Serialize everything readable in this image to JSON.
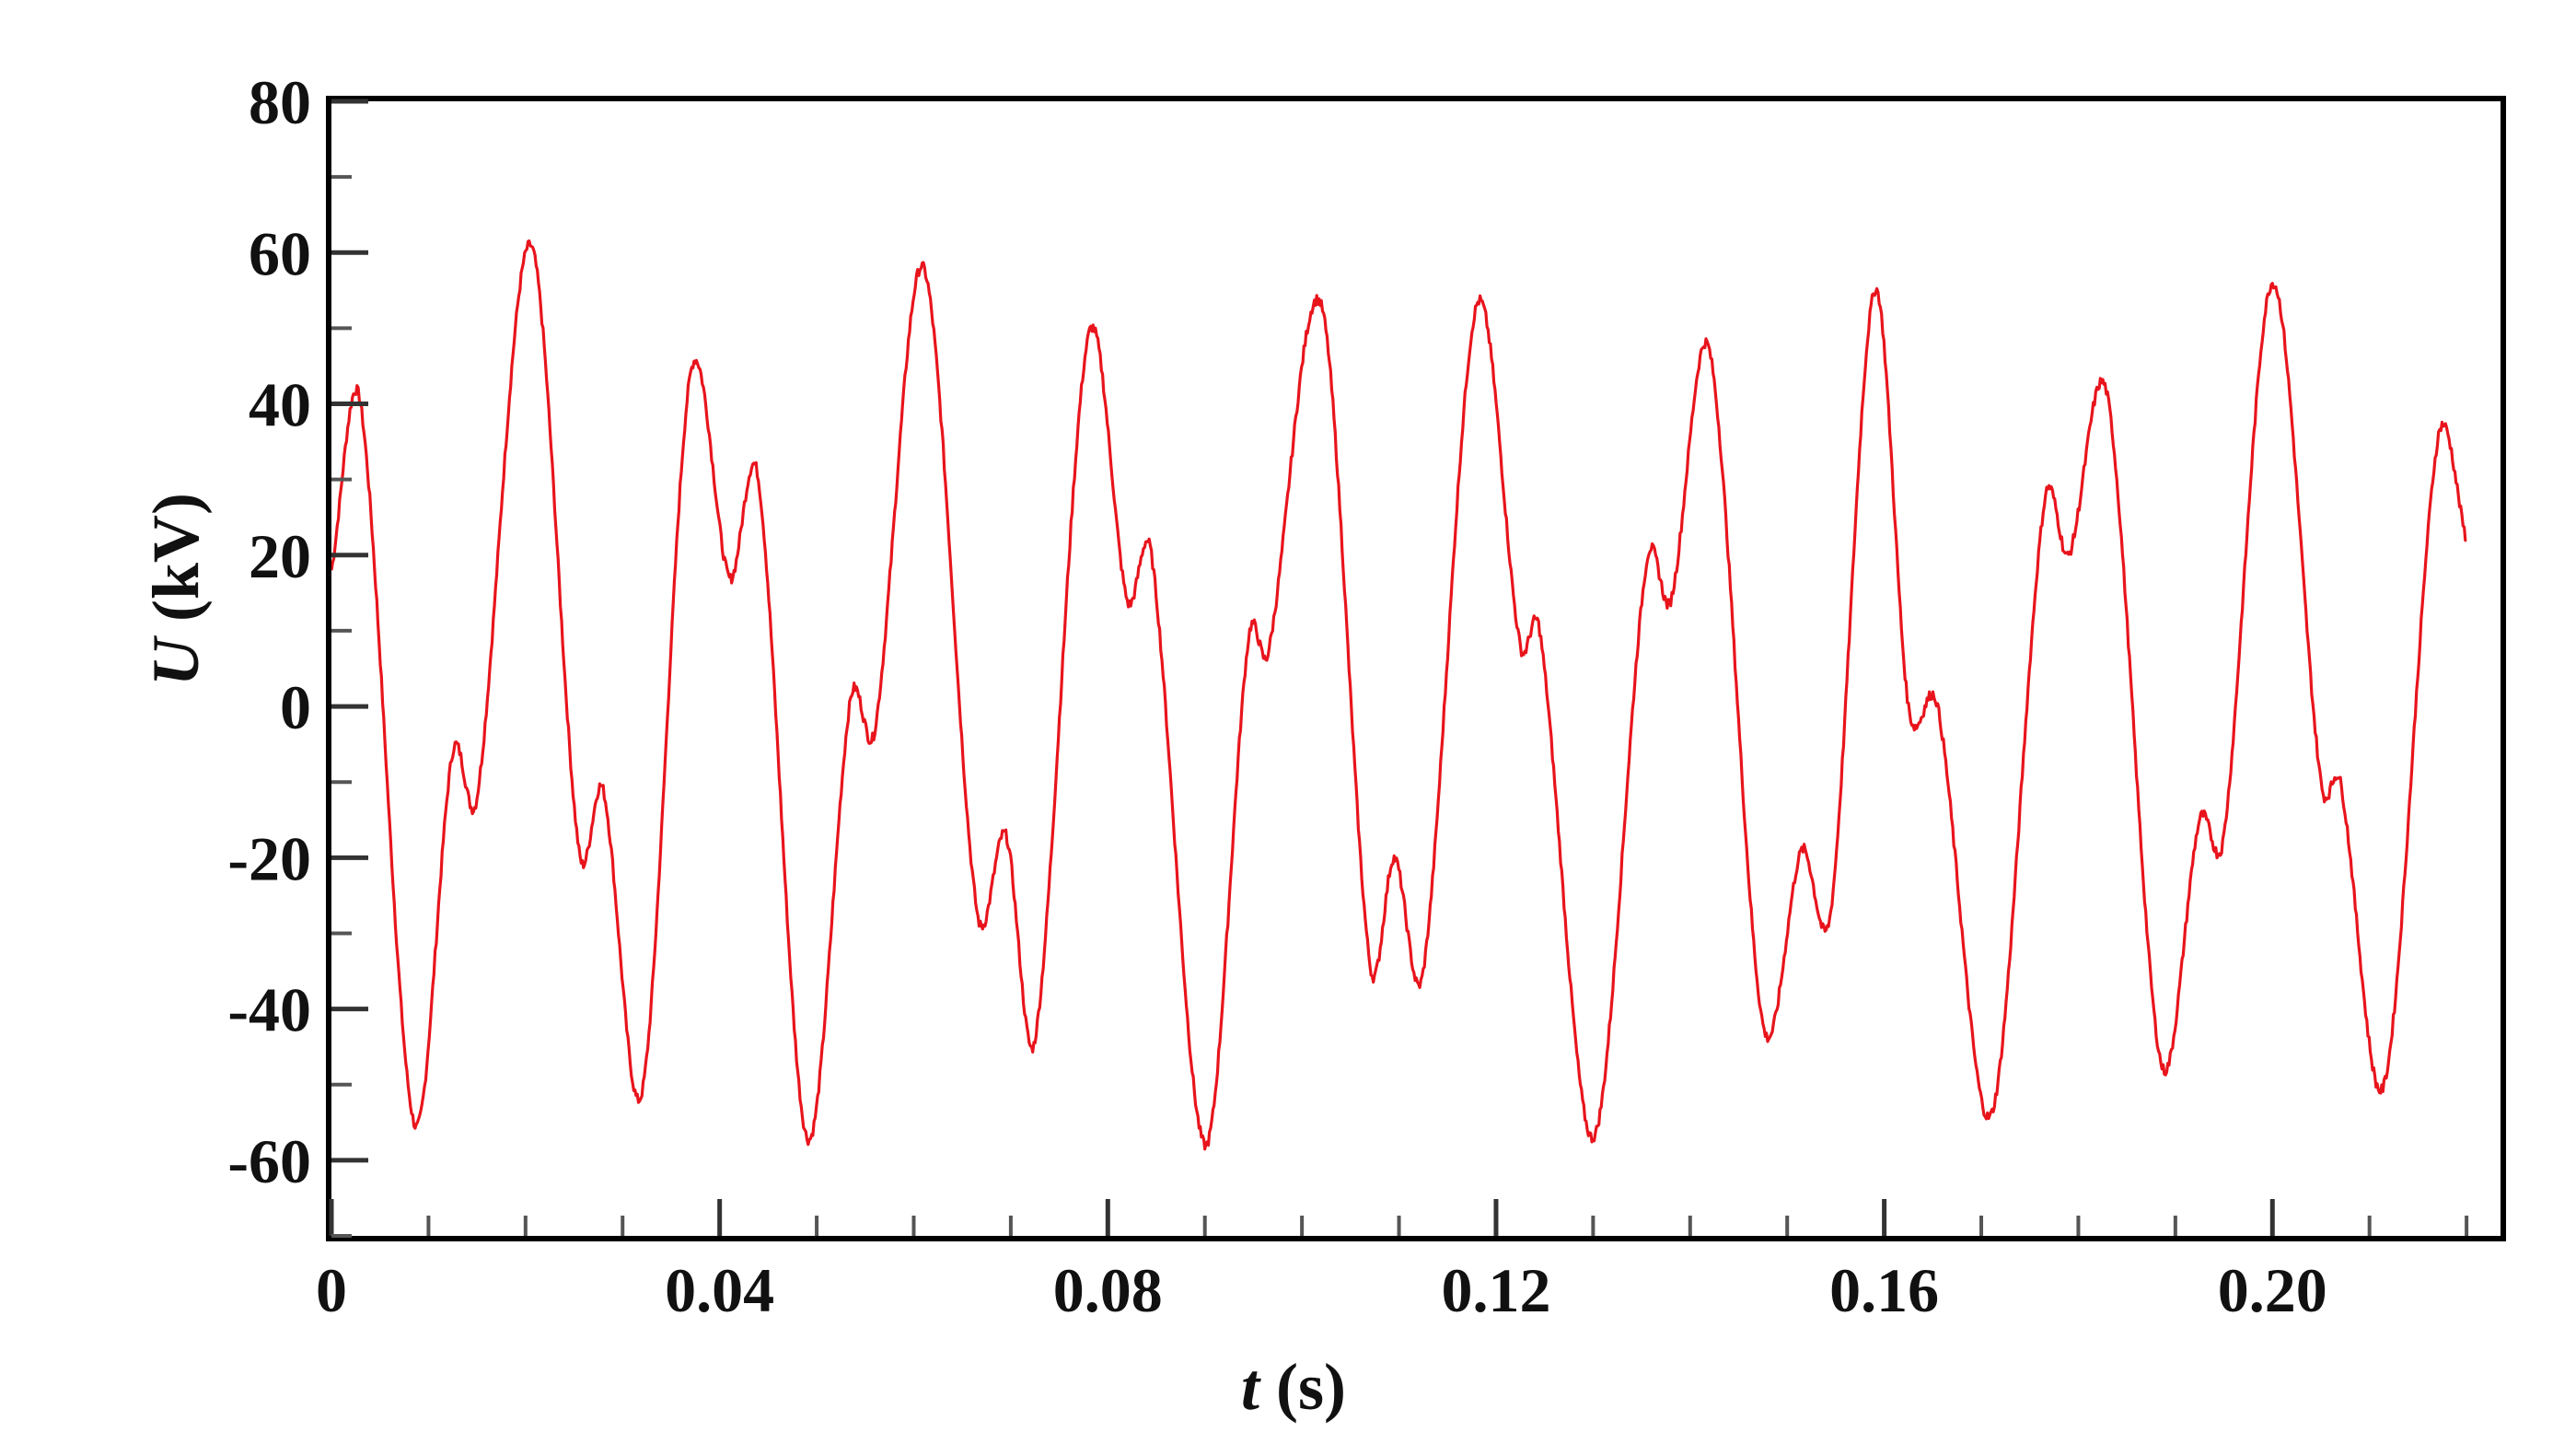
{
  "chart_data": {
    "type": "line",
    "title": "",
    "xlabel": {
      "var": "t",
      "unit": " (s)"
    },
    "ylabel": {
      "var": "U",
      "unit": " (kV)"
    },
    "xlim": [
      0,
      0.2235
    ],
    "ylim": [
      -70,
      80
    ],
    "x_ticks": [
      {
        "value": 0,
        "label": "0"
      },
      {
        "value": 0.04,
        "label": "0.04"
      },
      {
        "value": 0.08,
        "label": "0.08"
      },
      {
        "value": 0.12,
        "label": "0.12"
      },
      {
        "value": 0.16,
        "label": "0.16"
      },
      {
        "value": 0.2,
        "label": "0.20"
      }
    ],
    "x_minor_step": 0.01,
    "y_ticks": [
      {
        "value": 80,
        "label": "80"
      },
      {
        "value": 60,
        "label": "60"
      },
      {
        "value": 40,
        "label": "40"
      },
      {
        "value": 20,
        "label": "20"
      },
      {
        "value": 0,
        "label": "0"
      },
      {
        "value": -20,
        "label": "-20"
      },
      {
        "value": -40,
        "label": "-40"
      },
      {
        "value": -60,
        "label": "-60"
      }
    ],
    "y_minor_step": 10,
    "grid": false,
    "legend": "none",
    "series": [
      {
        "color": "#e8141c",
        "x": [
          0.0,
          0.003,
          0.0085,
          0.0125,
          0.015,
          0.0205,
          0.0255,
          0.028,
          0.032,
          0.037,
          0.041,
          0.044,
          0.049,
          0.0535,
          0.056,
          0.061,
          0.0665,
          0.0695,
          0.0725,
          0.078,
          0.082,
          0.0845,
          0.09,
          0.0945,
          0.0965,
          0.102,
          0.107,
          0.1095,
          0.1125,
          0.118,
          0.1225,
          0.1245,
          0.13,
          0.1355,
          0.138,
          0.142,
          0.1475,
          0.1515,
          0.1545,
          0.159,
          0.1625,
          0.1655,
          0.171,
          0.1765,
          0.179,
          0.183,
          0.1885,
          0.1925,
          0.195,
          0.2,
          0.205,
          0.207,
          0.2115,
          0.217,
          0.22
        ],
        "y": [
          18,
          40,
          -55,
          -6,
          -12,
          61,
          -19,
          -11,
          -51,
          44,
          17,
          30,
          -57,
          1,
          -3,
          58,
          -27,
          -17,
          -44,
          49,
          14,
          20,
          -58,
          9,
          7,
          53,
          -34,
          -20,
          -35,
          53,
          8,
          10,
          -57,
          19,
          14,
          47,
          -42,
          -19,
          -27,
          55,
          0,
          0,
          -54,
          27,
          20,
          41,
          -47,
          -15,
          -17,
          56,
          -10,
          -10,
          -50,
          35,
          22
        ]
      }
    ]
  }
}
